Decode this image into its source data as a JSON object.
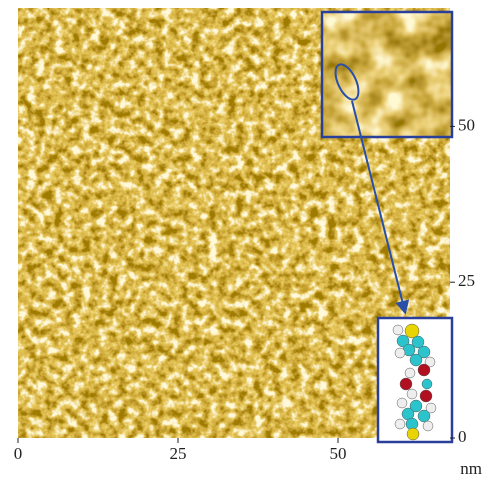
{
  "chart_data": {
    "type": "image",
    "xlabel": "nm",
    "xlim": [
      0,
      67.5
    ],
    "xticks": [
      0,
      25,
      50
    ],
    "ylim": [
      0,
      69
    ],
    "yticks": [
      0,
      25,
      50
    ]
  }
}
